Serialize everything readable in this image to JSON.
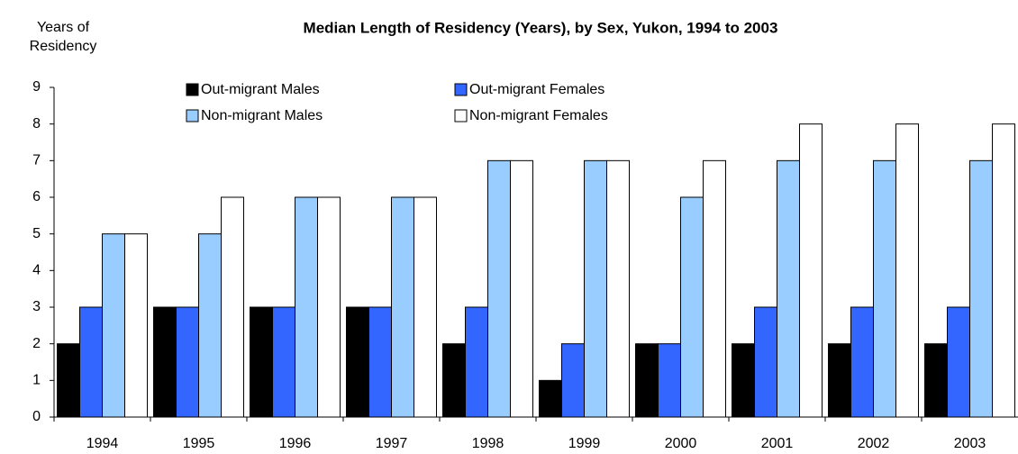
{
  "chart_data": {
    "type": "bar",
    "title": "Median Length of Residency (Years), by Sex, Yukon, 1994 to 2003",
    "y_label": "Years of Residency",
    "categories": [
      "1994",
      "1995",
      "1996",
      "1997",
      "1998",
      "1999",
      "2000",
      "2001",
      "2002",
      "2003"
    ],
    "series": [
      {
        "name": "Out-migrant Males",
        "color": "#000000",
        "values": [
          2,
          3,
          3,
          3,
          2,
          1,
          2,
          2,
          2,
          2
        ]
      },
      {
        "name": "Out-migrant Females",
        "color": "#3366ff",
        "values": [
          3,
          3,
          3,
          3,
          3,
          2,
          2,
          3,
          3,
          3
        ]
      },
      {
        "name": "Non-migrant Males",
        "color": "#99ccff",
        "values": [
          5,
          5,
          6,
          6,
          7,
          7,
          6,
          7,
          7,
          7
        ]
      },
      {
        "name": "Non-migrant Females",
        "color": "#ffffff",
        "values": [
          5,
          6,
          6,
          6,
          7,
          7,
          7,
          8,
          8,
          8
        ]
      }
    ],
    "ylim": [
      0,
      9
    ],
    "yticks": [
      0,
      1,
      2,
      3,
      4,
      5,
      6,
      7,
      8,
      9
    ],
    "grid": false,
    "legend": "top"
  }
}
